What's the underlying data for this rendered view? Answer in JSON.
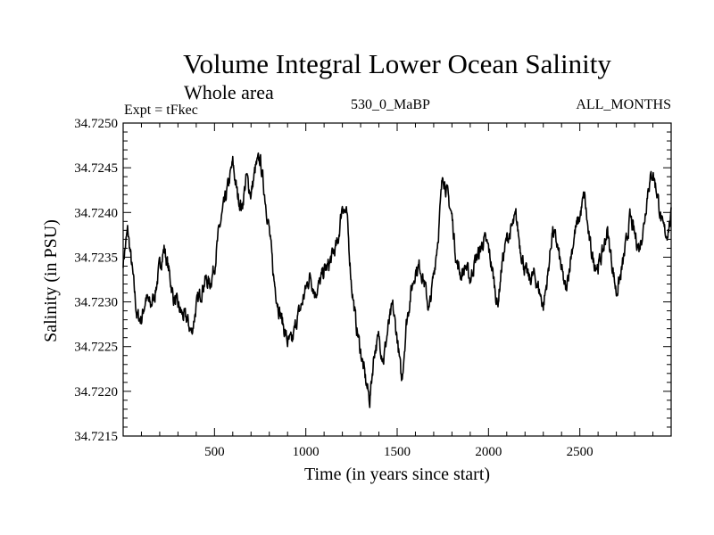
{
  "header": {
    "title": "Volume Integral Lower Ocean Salinity",
    "subtitle": "Whole area",
    "experiment": "Expt = tFkec",
    "run_label": "530_0_MaBP",
    "months_label": "ALL_MONTHS"
  },
  "chart_data": {
    "type": "line",
    "title": "Volume Integral Lower Ocean Salinity",
    "subtitle": "Whole area",
    "xlabel": "Time (in years since start)",
    "ylabel": "Salinity (in PSU)",
    "xlim": [
      0,
      3000
    ],
    "ylim": [
      34.7215,
      34.725
    ],
    "xticks": [
      500,
      1000,
      1500,
      2000,
      2500
    ],
    "yticks": [
      34.7215,
      34.722,
      34.7225,
      34.723,
      34.7235,
      34.724,
      34.7245,
      34.725
    ],
    "xtick_labels": [
      "500",
      "1000",
      "1500",
      "2000",
      "2500"
    ],
    "ytick_labels": [
      "34.7215",
      "34.7220",
      "34.7225",
      "34.7230",
      "34.7235",
      "34.7240",
      "34.7245",
      "34.7250"
    ],
    "grid": false,
    "series": [
      {
        "color": "#000000",
        "x": [
          0,
          25,
          50,
          75,
          100,
          125,
          150,
          175,
          200,
          225,
          250,
          275,
          300,
          325,
          350,
          375,
          400,
          425,
          450,
          475,
          500,
          525,
          550,
          575,
          600,
          625,
          650,
          675,
          700,
          725,
          750,
          775,
          800,
          825,
          850,
          875,
          900,
          925,
          950,
          975,
          1000,
          1025,
          1050,
          1075,
          1100,
          1125,
          1150,
          1175,
          1200,
          1225,
          1250,
          1275,
          1300,
          1325,
          1350,
          1375,
          1400,
          1425,
          1450,
          1475,
          1500,
          1525,
          1550,
          1575,
          1600,
          1625,
          1650,
          1675,
          1700,
          1725,
          1750,
          1775,
          1800,
          1825,
          1850,
          1875,
          1900,
          1925,
          1950,
          1975,
          2000,
          2025,
          2050,
          2075,
          2100,
          2125,
          2150,
          2175,
          2200,
          2225,
          2250,
          2275,
          2300,
          2325,
          2350,
          2375,
          2400,
          2425,
          2450,
          2475,
          2500,
          2525,
          2550,
          2575,
          2600,
          2625,
          2650,
          2675,
          2700,
          2725,
          2750,
          2775,
          2800,
          2825,
          2850,
          2875,
          2900,
          2925,
          2950,
          2975,
          3000
        ],
        "y": [
          34.72345,
          34.7238,
          34.72335,
          34.72285,
          34.7228,
          34.72305,
          34.72295,
          34.7231,
          34.7234,
          34.7236,
          34.72335,
          34.72305,
          34.72295,
          34.72285,
          34.7228,
          34.72265,
          34.72295,
          34.7231,
          34.72325,
          34.7232,
          34.7234,
          34.7238,
          34.72405,
          34.7243,
          34.72455,
          34.7242,
          34.72405,
          34.7244,
          34.7242,
          34.7245,
          34.7246,
          34.7242,
          34.7238,
          34.72325,
          34.72295,
          34.72275,
          34.72255,
          34.72255,
          34.7228,
          34.72295,
          34.72315,
          34.7233,
          34.7231,
          34.7232,
          34.72335,
          34.7234,
          34.72355,
          34.72365,
          34.7241,
          34.72395,
          34.7232,
          34.72275,
          34.72245,
          34.72215,
          34.7219,
          34.72245,
          34.7226,
          34.72235,
          34.7227,
          34.72295,
          34.7226,
          34.7221,
          34.72275,
          34.7231,
          34.72335,
          34.7234,
          34.7232,
          34.7229,
          34.7233,
          34.72375,
          34.72445,
          34.7242,
          34.72395,
          34.72345,
          34.7233,
          34.7234,
          34.72325,
          34.72345,
          34.72355,
          34.7237,
          34.7236,
          34.7233,
          34.72295,
          34.72345,
          34.7237,
          34.7238,
          34.72395,
          34.7236,
          34.72335,
          34.72325,
          34.7233,
          34.72315,
          34.72295,
          34.7233,
          34.7238,
          34.72365,
          34.72335,
          34.7231,
          34.7235,
          34.7238,
          34.72395,
          34.7242,
          34.7237,
          34.72345,
          34.7234,
          34.72355,
          34.7238,
          34.72345,
          34.7231,
          34.7233,
          34.7236,
          34.72395,
          34.72375,
          34.7236,
          34.72385,
          34.7243,
          34.72445,
          34.7242,
          34.72385,
          34.72375,
          34.72395
        ]
      }
    ]
  }
}
